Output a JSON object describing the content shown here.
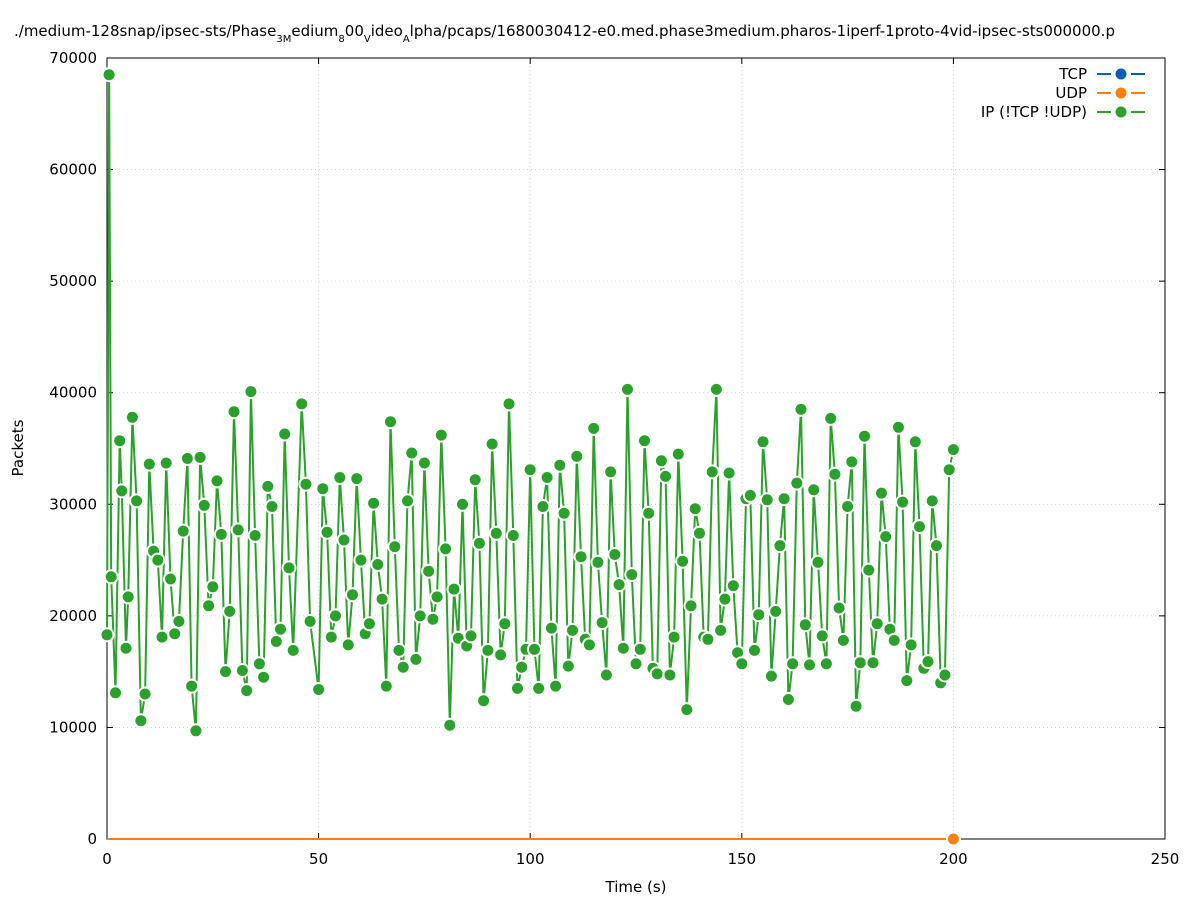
{
  "chart_data": {
    "type": "line",
    "title_parts": [
      {
        "text": "./medium-128snap/ipsec-sts/Phase",
        "sub": false
      },
      {
        "text": "3M",
        "sub": true
      },
      {
        "text": "edium",
        "sub": false
      },
      {
        "text": "8",
        "sub": true
      },
      {
        "text": "00",
        "sub": false
      },
      {
        "text": "V",
        "sub": true
      },
      {
        "text": "ideo",
        "sub": false
      },
      {
        "text": "A",
        "sub": true
      },
      {
        "text": "lpha/pcaps/1680030412-e0.med.phase3medium.pharos-1iperf-1proto-4vid-ipsec-sts000000.p",
        "sub": false
      }
    ],
    "xlabel": "Time (s)",
    "ylabel": "Packets",
    "xlim": [
      0,
      250
    ],
    "ylim": [
      0,
      70000
    ],
    "xticks": [
      "0",
      "50",
      "100",
      "150",
      "200",
      "250"
    ],
    "yticks": [
      "0",
      "10000",
      "20000",
      "30000",
      "40000",
      "50000",
      "60000",
      "70000"
    ],
    "grid": true,
    "legend_position": "top-right",
    "series": [
      {
        "name": "TCP",
        "color": "#0060ad",
        "x": [],
        "y": []
      },
      {
        "name": "UDP",
        "color": "#ff7f0e",
        "x": [
          0,
          2,
          4,
          6,
          8,
          10,
          12,
          14,
          16,
          18,
          20,
          22,
          24,
          26,
          28,
          30,
          32,
          34,
          36,
          38,
          40,
          42,
          44,
          46,
          48,
          50,
          52,
          54,
          56,
          58,
          60,
          62,
          64,
          66,
          68,
          70,
          72,
          74,
          76,
          78,
          80,
          82,
          84,
          86,
          88,
          90,
          92,
          94,
          96,
          98,
          100,
          102,
          104,
          106,
          108,
          110,
          112,
          114,
          116,
          118,
          120,
          122,
          124,
          126,
          128,
          130,
          132,
          134,
          136,
          138,
          140,
          142,
          144,
          146,
          148,
          150,
          152,
          154,
          156,
          158,
          160,
          162,
          164,
          166,
          168,
          170,
          172,
          174,
          176,
          178,
          180,
          182,
          184,
          186,
          188,
          190,
          192,
          194,
          196,
          198,
          200
        ],
        "y": [
          0,
          0,
          0,
          0,
          0,
          0,
          0,
          0,
          0,
          0,
          0,
          0,
          0,
          0,
          0,
          0,
          0,
          0,
          0,
          0,
          0,
          0,
          0,
          0,
          0,
          0,
          0,
          0,
          0,
          0,
          0,
          0,
          0,
          0,
          0,
          0,
          0,
          0,
          0,
          0,
          0,
          0,
          0,
          0,
          0,
          0,
          0,
          0,
          0,
          0,
          0,
          0,
          0,
          0,
          0,
          0,
          0,
          0,
          0,
          0,
          0,
          0,
          0,
          0,
          0,
          0,
          0,
          0,
          0,
          0,
          0,
          0,
          0,
          0,
          0,
          0,
          0,
          0,
          0,
          0,
          0,
          0,
          0,
          0,
          0,
          0,
          0,
          0,
          0,
          0,
          0,
          0,
          0,
          0,
          0,
          0,
          0,
          0,
          0,
          0,
          0
        ]
      },
      {
        "name": "IP (!TCP  !UDP)",
        "color": "#2ca02c",
        "x": [
          0,
          0.5,
          1,
          2,
          3,
          3.5,
          4.5,
          5,
          6,
          7,
          8,
          9,
          10,
          11,
          12,
          13,
          14,
          15,
          16,
          17,
          18,
          19,
          20,
          21,
          22,
          23,
          24,
          25,
          26,
          27,
          28,
          29,
          30,
          31,
          32,
          33,
          34,
          35,
          36,
          37,
          38,
          39,
          40,
          41,
          42,
          43,
          44,
          46,
          47,
          48,
          50,
          51,
          52,
          53,
          54,
          55,
          56,
          57,
          58,
          59,
          60,
          61,
          62,
          63,
          64,
          65,
          66,
          67,
          68,
          69,
          70,
          71,
          72,
          73,
          74,
          75,
          76,
          77,
          78,
          79,
          80,
          81,
          82,
          83,
          84,
          85,
          86,
          87,
          88,
          89,
          90,
          91,
          92,
          93,
          94,
          95,
          96,
          97,
          98,
          99,
          100,
          101,
          102,
          103,
          104,
          105,
          106,
          107,
          108,
          109,
          110,
          111,
          112,
          113,
          114,
          115,
          116,
          117,
          118,
          119,
          120,
          121,
          122,
          123,
          124,
          125,
          126,
          127,
          128,
          129,
          130,
          131,
          132,
          133,
          134,
          135,
          136,
          137,
          138,
          139,
          140,
          141,
          142,
          143,
          144,
          145,
          146,
          147,
          148,
          149,
          150,
          151,
          152,
          153,
          154,
          155,
          156,
          157,
          158,
          159,
          160,
          161,
          162,
          163,
          164,
          165,
          166,
          167,
          168,
          169,
          170,
          171,
          172,
          173,
          174,
          175,
          176,
          177,
          178,
          179,
          180,
          181,
          182,
          183,
          184,
          185,
          186,
          187,
          188,
          189,
          190,
          191,
          192,
          193,
          194,
          195,
          196,
          197,
          198,
          199,
          200
        ],
        "y": [
          18300,
          68500,
          23500,
          13100,
          35700,
          31200,
          17100,
          21700,
          37800,
          30300,
          10600,
          13000,
          33600,
          25800,
          25000,
          18100,
          33700,
          23300,
          18400,
          19500,
          27600,
          34100,
          13700,
          9700,
          34200,
          29900,
          20900,
          22600,
          32100,
          27300,
          15000,
          20400,
          38300,
          27700,
          15100,
          13300,
          40100,
          27200,
          15700,
          14500,
          31600,
          29800,
          17700,
          18800,
          36300,
          24300,
          16900,
          39000,
          31800,
          19500,
          13400,
          31400,
          27500,
          18100,
          20000,
          32400,
          26800,
          17400,
          21900,
          32300,
          25000,
          18400,
          19300,
          30100,
          24600,
          21500,
          13700,
          37400,
          26200,
          16900,
          15400,
          30300,
          34600,
          16100,
          20000,
          33700,
          24000,
          19700,
          21700,
          36200,
          26000,
          10200,
          22400,
          18000,
          30000,
          17300,
          18200,
          32200,
          26500,
          12400,
          16900,
          35400,
          27400,
          16500,
          19300,
          39000,
          27200,
          13500,
          15400,
          17000,
          33100,
          17000,
          13500,
          29800,
          32400,
          18900,
          13700,
          33500,
          29200,
          15500,
          18700,
          34300,
          25300,
          17900,
          17400,
          36800,
          24800,
          19400,
          14700,
          32900,
          25500,
          22800,
          17100,
          40300,
          23700,
          15700,
          17000,
          35700,
          29200,
          15300,
          14800,
          33900,
          32500,
          14700,
          18100,
          34500,
          24900,
          11600,
          20900,
          29600,
          27400,
          18100,
          17900,
          32900,
          40300,
          18700,
          21500,
          32800,
          22700,
          16700,
          15700,
          30500,
          30800,
          16900,
          20100,
          35600,
          30400,
          14600,
          20400,
          26300,
          30500,
          12500,
          15700,
          31900,
          38500,
          19200,
          15600,
          31300,
          24800,
          18200,
          15700,
          37700,
          32700,
          20700,
          17800,
          29800,
          33800,
          11900,
          15800,
          36100,
          24100,
          15800,
          19300,
          31000,
          27100,
          18800,
          17800,
          36900,
          30200,
          14200,
          17400,
          35600,
          28000,
          15300,
          15900,
          30300,
          26300,
          14000,
          14700,
          33100,
          34900
        ]
      }
    ]
  }
}
